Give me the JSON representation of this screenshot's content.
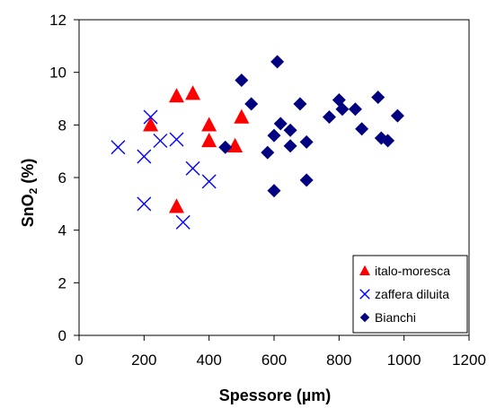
{
  "chart_data": {
    "type": "scatter",
    "xlabel": "Spessore (µm)",
    "ylabel_main": "SnO",
    "ylabel_sub": "2",
    "ylabel_tail": " (%)",
    "xlim": [
      0,
      1200
    ],
    "ylim": [
      0,
      12
    ],
    "xticks": [
      "0",
      "200",
      "400",
      "600",
      "800",
      "1000",
      "1200"
    ],
    "yticks": [
      "0",
      "2",
      "4",
      "6",
      "8",
      "10",
      "12"
    ],
    "grid": false,
    "legend_position": "bottom-right",
    "series": [
      {
        "name": "italo-moresca",
        "marker": "triangle",
        "color": "#ff0000",
        "points": [
          [
            220,
            8.0
          ],
          [
            300,
            9.1
          ],
          [
            350,
            9.2
          ],
          [
            400,
            8.0
          ],
          [
            400,
            7.4
          ],
          [
            480,
            7.2
          ],
          [
            500,
            8.3
          ],
          [
            300,
            4.9
          ]
        ]
      },
      {
        "name": "zaffera diluita",
        "marker": "x",
        "color": "#0000ff",
        "points": [
          [
            120,
            7.15
          ],
          [
            200,
            6.8
          ],
          [
            200,
            5.0
          ],
          [
            220,
            8.3
          ],
          [
            250,
            7.4
          ],
          [
            300,
            7.45
          ],
          [
            350,
            6.35
          ],
          [
            400,
            5.85
          ],
          [
            320,
            4.3
          ]
        ]
      },
      {
        "name": "Bianchi",
        "marker": "diamond",
        "color": "#000080",
        "points": [
          [
            450,
            7.15
          ],
          [
            500,
            9.7
          ],
          [
            530,
            8.8
          ],
          [
            580,
            6.95
          ],
          [
            600,
            5.5
          ],
          [
            600,
            7.6
          ],
          [
            610,
            10.4
          ],
          [
            620,
            8.05
          ],
          [
            650,
            7.8
          ],
          [
            650,
            7.2
          ],
          [
            680,
            8.8
          ],
          [
            700,
            7.35
          ],
          [
            700,
            5.9
          ],
          [
            770,
            8.3
          ],
          [
            800,
            8.95
          ],
          [
            810,
            8.6
          ],
          [
            850,
            8.6
          ],
          [
            870,
            7.85
          ],
          [
            920,
            9.05
          ],
          [
            930,
            7.5
          ],
          [
            950,
            7.4
          ],
          [
            980,
            8.35
          ]
        ]
      }
    ]
  }
}
